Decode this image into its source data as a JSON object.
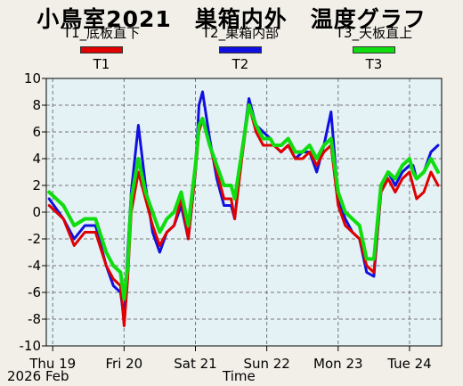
{
  "title": "小鳥室2021　巣箱内外　温度グラフ",
  "legend": [
    {
      "sub": "T1_底板直下",
      "label": "T1",
      "color": "#e00000"
    },
    {
      "sub": "T2_巣箱内部",
      "label": "T2",
      "color": "#1010e0"
    },
    {
      "sub": "T3_天板直上",
      "label": "T3",
      "color": "#10dd10"
    }
  ],
  "footer": {
    "year_month": "2026 Feb",
    "xlabel": "Time"
  },
  "chart_data": {
    "type": "line",
    "xlabel": "Time",
    "ylim": [
      -10,
      10
    ],
    "y_ticks": [
      10,
      8,
      6,
      4,
      2,
      0,
      -2,
      -4,
      -6,
      -8,
      -10
    ],
    "x_tick_labels": [
      "Thu 19",
      "Fri 20",
      "Sat 21",
      "Sun 22",
      "Mon 23",
      "Tue 24"
    ],
    "x_range_days": [
      -0.09,
      5.45
    ],
    "grid": true,
    "series": [
      {
        "name": "T1",
        "color": "#e00000",
        "x": [
          -0.05,
          0.15,
          0.3,
          0.45,
          0.6,
          0.75,
          0.85,
          0.95,
          1.0,
          1.05,
          1.1,
          1.2,
          1.3,
          1.4,
          1.5,
          1.6,
          1.7,
          1.8,
          1.9,
          2.0,
          2.05,
          2.1,
          2.2,
          2.3,
          2.4,
          2.5,
          2.55,
          2.65,
          2.75,
          2.85,
          2.95,
          3.05,
          3.1,
          3.2,
          3.3,
          3.4,
          3.5,
          3.6,
          3.7,
          3.8,
          3.9,
          4.0,
          4.1,
          4.2,
          4.3,
          4.4,
          4.5,
          4.6,
          4.7,
          4.8,
          4.9,
          5.0,
          5.05,
          5.1,
          5.2,
          5.3,
          5.4
        ],
        "y": [
          0.5,
          -0.5,
          -2.5,
          -1.5,
          -1.5,
          -4,
          -5,
          -5.5,
          -8.5,
          -5,
          0,
          3,
          1,
          -1,
          -2.5,
          -1.5,
          -1,
          1,
          -2,
          3,
          6,
          7,
          5,
          3,
          1,
          1,
          -0.5,
          4,
          8,
          6,
          5,
          5,
          5,
          4.5,
          5,
          4,
          4,
          4.5,
          3.5,
          4.5,
          5,
          0.5,
          -1,
          -1.5,
          -2,
          -4,
          -4.5,
          1.5,
          2.5,
          1.5,
          2.5,
          3,
          2,
          1,
          1.5,
          3,
          2
        ]
      },
      {
        "name": "T2",
        "color": "#1010e0",
        "x": [
          -0.05,
          0.15,
          0.3,
          0.45,
          0.6,
          0.75,
          0.85,
          0.95,
          1.0,
          1.05,
          1.1,
          1.2,
          1.3,
          1.4,
          1.5,
          1.6,
          1.7,
          1.8,
          1.9,
          2.0,
          2.05,
          2.1,
          2.2,
          2.3,
          2.4,
          2.5,
          2.55,
          2.65,
          2.75,
          2.85,
          2.95,
          3.05,
          3.1,
          3.2,
          3.3,
          3.4,
          3.5,
          3.6,
          3.7,
          3.8,
          3.9,
          4.0,
          4.1,
          4.2,
          4.3,
          4.4,
          4.5,
          4.6,
          4.7,
          4.8,
          4.9,
          5.0,
          5.05,
          5.1,
          5.2,
          5.3,
          5.4
        ],
        "y": [
          1,
          -0.5,
          -2,
          -1,
          -1,
          -4,
          -5.5,
          -6,
          -8,
          -3,
          1.5,
          6.5,
          2,
          -1.5,
          -3,
          -1.5,
          -1,
          0.5,
          -2,
          3,
          8,
          9,
          5.5,
          2.5,
          0.5,
          0.5,
          -0.5,
          4.5,
          8.5,
          6.5,
          6,
          5.5,
          5,
          4.5,
          5,
          4,
          4.5,
          4.5,
          3,
          5,
          7.5,
          1,
          -0.5,
          -1.5,
          -2,
          -4.5,
          -4.8,
          1.5,
          3,
          2,
          3,
          3.5,
          3.5,
          2.5,
          3,
          4.5,
          5
        ]
      },
      {
        "name": "T3",
        "color": "#10dd10",
        "x": [
          -0.05,
          0.15,
          0.3,
          0.45,
          0.6,
          0.75,
          0.85,
          0.95,
          1.0,
          1.05,
          1.1,
          1.2,
          1.3,
          1.4,
          1.5,
          1.6,
          1.7,
          1.8,
          1.9,
          2.0,
          2.05,
          2.1,
          2.2,
          2.3,
          2.4,
          2.5,
          2.55,
          2.65,
          2.75,
          2.85,
          2.95,
          3.05,
          3.1,
          3.2,
          3.3,
          3.4,
          3.5,
          3.6,
          3.7,
          3.8,
          3.9,
          4.0,
          4.1,
          4.2,
          4.3,
          4.4,
          4.5,
          4.6,
          4.7,
          4.8,
          4.9,
          5.0,
          5.05,
          5.1,
          5.2,
          5.3,
          5.4
        ],
        "y": [
          1.5,
          0.5,
          -1,
          -0.5,
          -0.5,
          -3,
          -4,
          -4.5,
          -6.5,
          -4,
          1,
          4,
          1.5,
          0,
          -1.5,
          -0.5,
          0,
          1.5,
          -1,
          3.5,
          6.5,
          7,
          5,
          3.5,
          2,
          2,
          1,
          4.5,
          8,
          6.5,
          5.5,
          5.5,
          5,
          5,
          5.5,
          4.5,
          4.5,
          5,
          4,
          5,
          5.5,
          1.5,
          0,
          -0.5,
          -1,
          -3.5,
          -3.5,
          2,
          3,
          2.5,
          3.5,
          4,
          3,
          2.5,
          3,
          4,
          3
        ]
      }
    ]
  }
}
